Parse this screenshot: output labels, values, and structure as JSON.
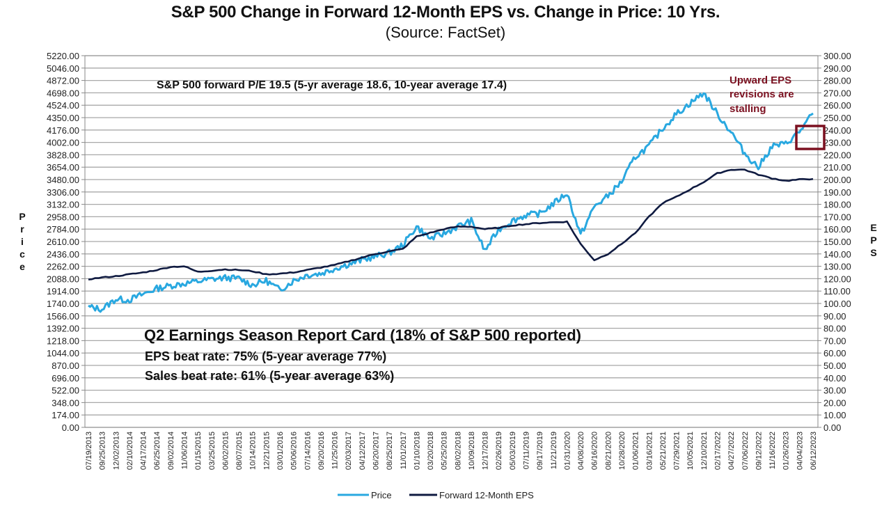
{
  "chart_data": {
    "type": "line",
    "title": "S&P 500 Change in Forward 12-Month EPS vs. Change in Price: 10 Yrs.",
    "subtitle": "(Source: FactSet)",
    "ylabel_left": "Price",
    "ylabel_right": "EPS",
    "ylim_left": [
      0,
      5220
    ],
    "ylim_right": [
      0,
      300
    ],
    "yticks_left": [
      "5220.00",
      "5046.00",
      "4872.00",
      "4698.00",
      "4524.00",
      "4350.00",
      "4176.00",
      "4002.00",
      "3828.00",
      "3654.00",
      "3480.00",
      "3306.00",
      "3132.00",
      "2958.00",
      "2784.00",
      "2610.00",
      "2436.00",
      "2262.00",
      "2088.00",
      "1914.00",
      "1740.00",
      "1566.00",
      "1392.00",
      "1218.00",
      "1044.00",
      "870.00",
      "696.00",
      "522.00",
      "348.00",
      "174.00",
      "0.00"
    ],
    "yticks_right": [
      "300.00",
      "290.00",
      "280.00",
      "270.00",
      "260.00",
      "250.00",
      "240.00",
      "230.00",
      "220.00",
      "210.00",
      "200.00",
      "190.00",
      "180.00",
      "170.00",
      "160.00",
      "150.00",
      "140.00",
      "130.00",
      "120.00",
      "110.00",
      "100.00",
      "90.00",
      "80.00",
      "70.00",
      "60.00",
      "50.00",
      "40.00",
      "30.00",
      "20.00",
      "10.00",
      "0.00"
    ],
    "xticks": [
      "07/19/2013",
      "09/25/2013",
      "12/02/2013",
      "02/10/2014",
      "04/17/2014",
      "06/25/2014",
      "09/02/2014",
      "11/06/2014",
      "01/15/2015",
      "03/25/2015",
      "06/02/2015",
      "08/07/2015",
      "10/14/2015",
      "12/21/2015",
      "03/01/2016",
      "05/06/2016",
      "07/14/2016",
      "09/20/2016",
      "11/25/2016",
      "02/03/2017",
      "04/12/2017",
      "06/20/2017",
      "08/25/2017",
      "11/01/2017",
      "01/10/2018",
      "03/20/2018",
      "05/25/2018",
      "08/02/2018",
      "10/09/2018",
      "12/17/2018",
      "02/26/2019",
      "05/03/2019",
      "07/11/2019",
      "09/17/2019",
      "11/21/2019",
      "01/31/2020",
      "04/08/2020",
      "06/16/2020",
      "08/21/2020",
      "10/28/2020",
      "01/06/2021",
      "03/16/2021",
      "05/21/2021",
      "07/29/2021",
      "10/05/2021",
      "12/10/2021",
      "02/17/2022",
      "04/27/2022",
      "07/06/2022",
      "09/12/2022",
      "11/16/2022",
      "01/26/2023",
      "04/04/2023",
      "06/12/2023"
    ],
    "grid": true,
    "legend_position": "bottom",
    "series": [
      {
        "name": "Price",
        "axis": "left",
        "color": "#29a8e0",
        "values": [
          1690,
          1660,
          1800,
          1790,
          1870,
          1950,
          1990,
          2020,
          2050,
          2080,
          2100,
          2090,
          2000,
          2060,
          1930,
          2060,
          2140,
          2160,
          2230,
          2290,
          2350,
          2400,
          2450,
          2560,
          2820,
          2650,
          2720,
          2820,
          2900,
          2480,
          2780,
          2900,
          2980,
          3000,
          3140,
          3290,
          2700,
          3100,
          3250,
          3450,
          3800,
          3950,
          4200,
          4400,
          4550,
          4700,
          4400,
          4150,
          3850,
          3650,
          3950,
          3980,
          4150,
          4410
        ]
      },
      {
        "name": "Forward 12-Month EPS",
        "axis": "right",
        "color": "#0f1a40",
        "values": [
          119.5,
          121,
          122,
          123.5,
          125,
          127,
          129.5,
          130,
          125.5,
          126.5,
          127.5,
          127,
          126,
          123.5,
          124,
          125,
          127,
          129,
          131,
          134,
          137,
          140,
          142,
          144,
          154,
          157,
          160,
          162,
          162,
          160,
          161,
          163,
          164,
          165,
          165.5,
          166,
          148,
          135,
          140,
          148,
          157,
          170,
          181,
          186,
          192,
          198,
          205,
          208,
          208,
          204,
          201,
          199,
          200,
          200.5
        ]
      }
    ],
    "annotations": [
      "S&P 500 forward P/E 19.5 (5-yr average 18.6, 10-year average 17.4)",
      "Upward EPS revisions are stalling",
      "Q2 Earnings Season Report Card (18% of S&P 500 reported)",
      "EPS beat rate: 75% (5-year average 77%)",
      "Sales beat rate: 61% (5-year average 63%)"
    ]
  },
  "annotation": {
    "pe_line": "S&P 500 forward P/E 19.5 (5-yr average 18.6, 10-year average 17.4)",
    "stalling_lines": [
      "Upward EPS",
      "revisions are",
      "stalling"
    ],
    "stalling_color": "#7b1020",
    "report_title": "Q2 Earnings Season Report Card (18% of S&P 500 reported)",
    "eps_beat": "EPS beat rate: 75% (5-year average 77%)",
    "sales_beat": "Sales beat rate: 61% (5-year average 63%)"
  },
  "legend": {
    "price_label": "Price",
    "eps_label": "Forward 12-Month EPS"
  }
}
